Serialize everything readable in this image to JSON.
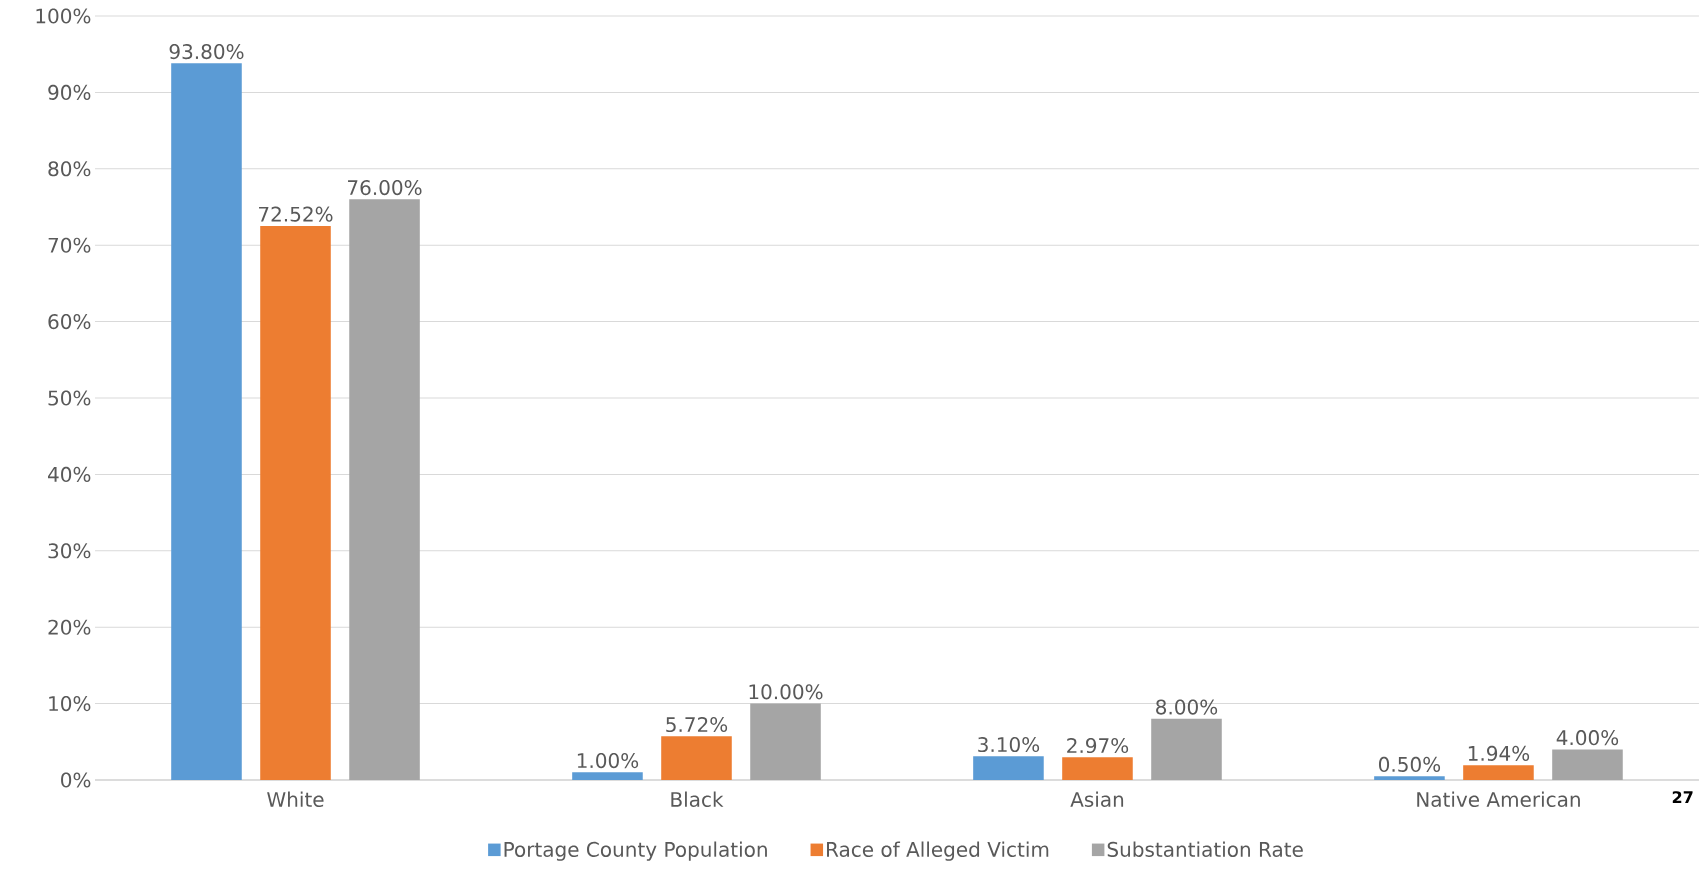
{
  "chart_data": {
    "type": "bar",
    "categories": [
      "White",
      "Black",
      "Asian",
      "Native American"
    ],
    "series": [
      {
        "name": "Portage County Population",
        "color": "#5b9bd5",
        "values": [
          93.8,
          1.0,
          3.1,
          0.5
        ],
        "value_labels": [
          "93.80%",
          "1.00%",
          "3.10%",
          "0.50%"
        ]
      },
      {
        "name": "Race of Alleged Victim",
        "color": "#ed7d31",
        "values": [
          72.52,
          5.72,
          2.97,
          1.94
        ],
        "value_labels": [
          "72.52%",
          "5.72%",
          "2.97%",
          "1.94%"
        ]
      },
      {
        "name": "Substantiation Rate",
        "color": "#a5a5a5",
        "values": [
          76.0,
          10.0,
          8.0,
          4.0
        ],
        "value_labels": [
          "76.00%",
          "10.00%",
          "8.00%",
          "4.00%"
        ]
      }
    ],
    "ylim": [
      0,
      100
    ],
    "yticks": [
      {
        "value": 0,
        "label": "0%"
      },
      {
        "value": 10,
        "label": "10%"
      },
      {
        "value": 20,
        "label": "20%"
      },
      {
        "value": 30,
        "label": "30%"
      },
      {
        "value": 40,
        "label": "40%"
      },
      {
        "value": 50,
        "label": "50%"
      },
      {
        "value": 60,
        "label": "60%"
      },
      {
        "value": 70,
        "label": "70%"
      },
      {
        "value": 80,
        "label": "80%"
      },
      {
        "value": 90,
        "label": "90%"
      },
      {
        "value": 100,
        "label": "100%"
      }
    ],
    "grid": "y",
    "legend": "bottom",
    "annotations": [
      "27"
    ]
  }
}
